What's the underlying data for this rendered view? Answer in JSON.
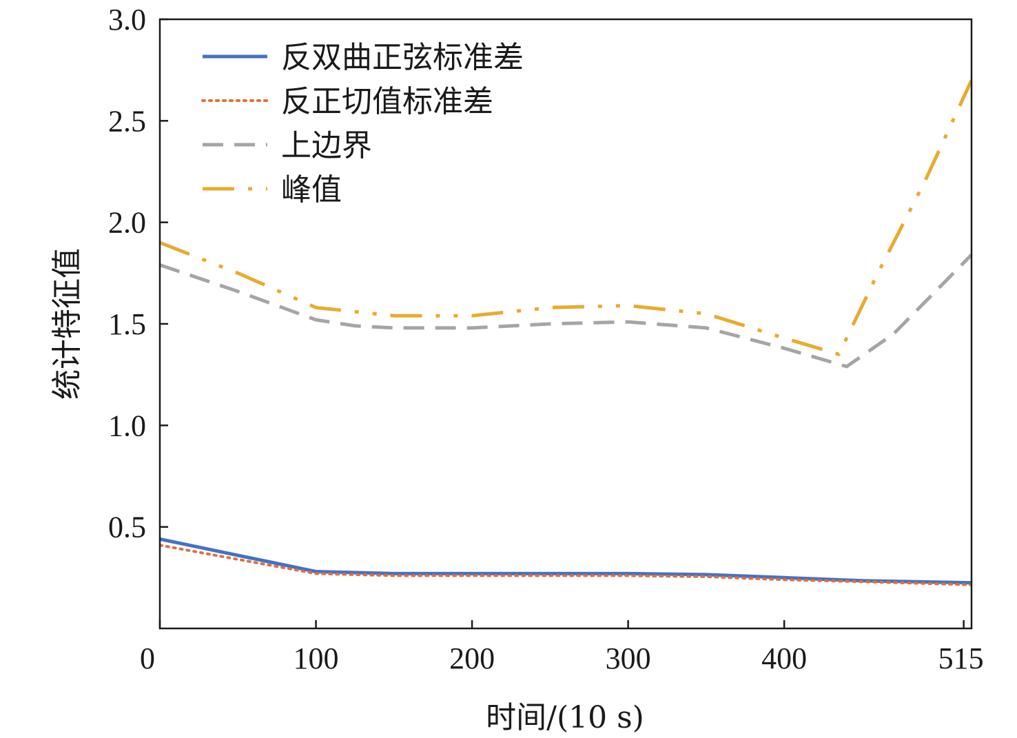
{
  "chart_data": {
    "type": "line",
    "title": "",
    "xlabel": "时间/(10 s)",
    "ylabel": "统计特征值",
    "xlim": [
      0,
      520
    ],
    "ylim": [
      0.0,
      3.0
    ],
    "x_ticks": [
      0,
      100,
      200,
      300,
      400,
      515
    ],
    "x_tick_labels": [
      "0",
      "100",
      "200",
      "300",
      "400",
      "515"
    ],
    "y_ticks": [
      0.5,
      1.0,
      1.5,
      2.0,
      2.5,
      3.0
    ],
    "y_tick_labels": [
      "0.5",
      "1.0",
      "1.5",
      "2.0",
      "2.5",
      "3.0"
    ],
    "grid": false,
    "legend_position": "top-left",
    "series": [
      {
        "name": "反双曲正弦标准差",
        "color": "#4472C4",
        "style": "solid",
        "x": [
          0,
          50,
          100,
          150,
          200,
          250,
          300,
          350,
          400,
          450,
          520
        ],
        "y": [
          0.44,
          0.36,
          0.28,
          0.27,
          0.27,
          0.27,
          0.27,
          0.265,
          0.25,
          0.235,
          0.225
        ]
      },
      {
        "name": "反正切值标准差",
        "color": "#E0703A",
        "style": "dotted",
        "x": [
          0,
          50,
          100,
          150,
          200,
          250,
          300,
          350,
          400,
          450,
          520
        ],
        "y": [
          0.41,
          0.34,
          0.27,
          0.26,
          0.26,
          0.26,
          0.26,
          0.255,
          0.24,
          0.23,
          0.215
        ]
      },
      {
        "name": "上边界",
        "color": "#A5A5A5",
        "style": "dashed",
        "x": [
          0,
          50,
          100,
          125,
          150,
          175,
          200,
          250,
          300,
          350,
          400,
          440,
          470,
          520
        ],
        "y": [
          1.79,
          1.66,
          1.52,
          1.49,
          1.48,
          1.48,
          1.48,
          1.5,
          1.51,
          1.48,
          1.38,
          1.29,
          1.45,
          1.84
        ]
      },
      {
        "name": "峰值",
        "color": "#E8AB2E",
        "style": "dashdotdot",
        "x": [
          0,
          50,
          100,
          150,
          200,
          250,
          300,
          350,
          400,
          435,
          460,
          490,
          520
        ],
        "y": [
          1.9,
          1.75,
          1.58,
          1.54,
          1.54,
          1.58,
          1.59,
          1.55,
          1.43,
          1.35,
          1.75,
          2.2,
          2.7
        ]
      }
    ]
  }
}
